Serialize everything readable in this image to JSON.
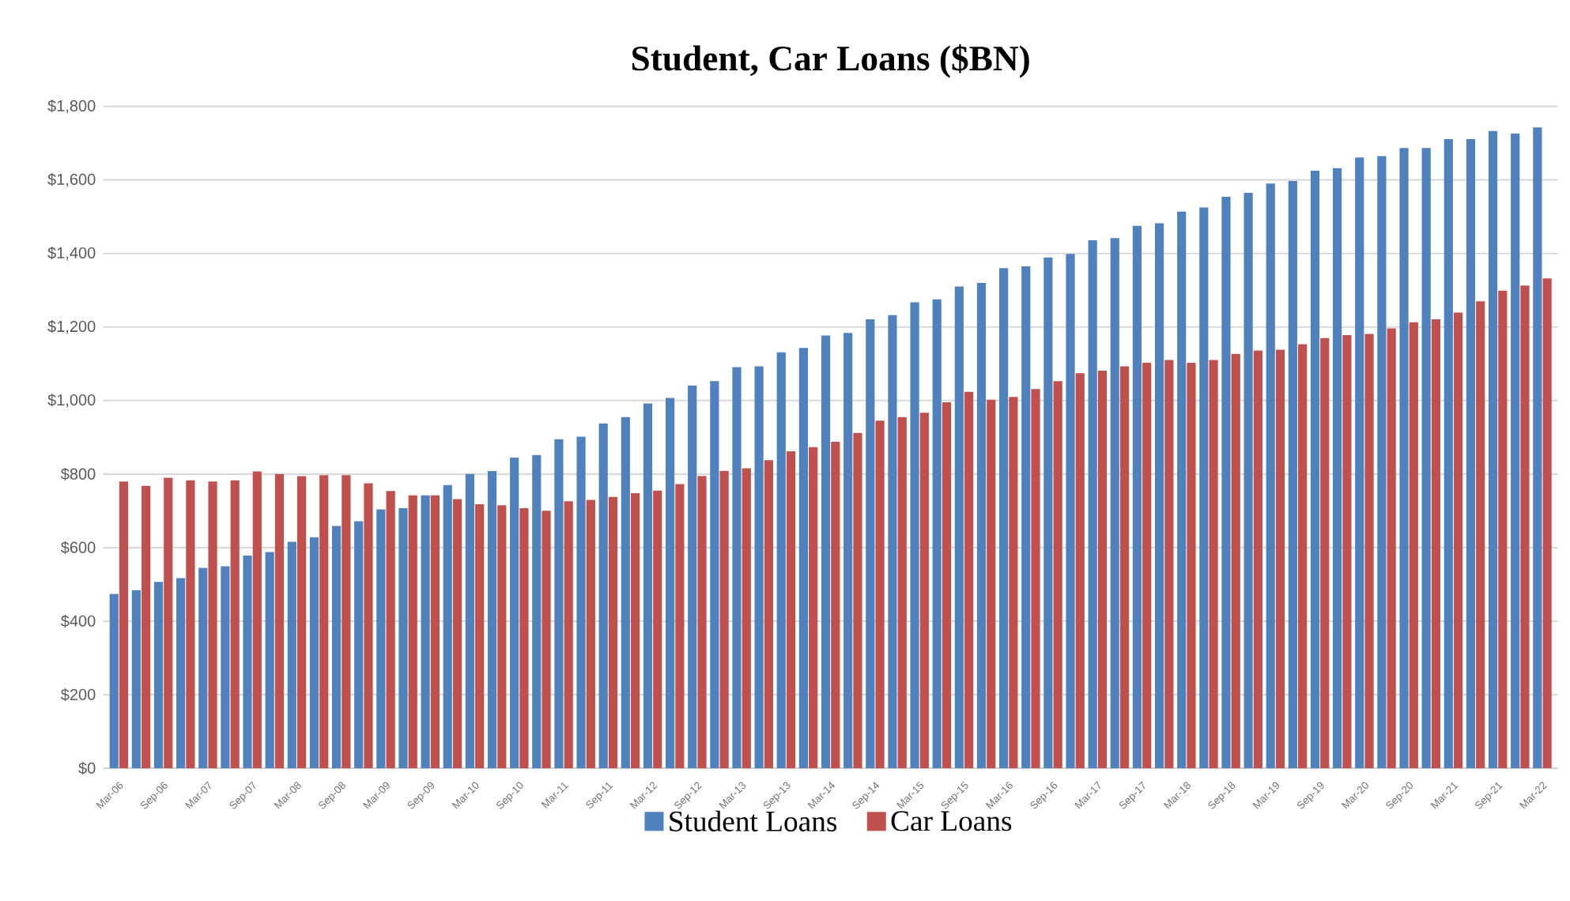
{
  "chart_data": {
    "type": "bar",
    "title": "Student, Car Loans ($BN)",
    "categories": [
      "Mar-06",
      null,
      "Sep-06",
      null,
      "Mar-07",
      null,
      "Sep-07",
      null,
      "Mar-08",
      null,
      "Sep-08",
      null,
      "Mar-09",
      null,
      "Sep-09",
      null,
      "Mar-10",
      null,
      "Sep-10",
      null,
      "Mar-11",
      null,
      "Sep-11",
      null,
      "Mar-12",
      null,
      "Sep-12",
      null,
      "Mar-13",
      null,
      "Sep-13",
      null,
      "Mar-14",
      null,
      "Sep-14",
      null,
      "Mar-15",
      null,
      "Sep-15",
      null,
      "Mar-16",
      null,
      "Sep-16",
      null,
      "Mar-17",
      null,
      "Sep-17",
      null,
      "Mar-18",
      null,
      "Sep-18",
      null,
      "Mar-19",
      null,
      "Sep-19",
      null,
      "Mar-20",
      null,
      "Sep-20",
      null,
      "Mar-21",
      null,
      "Sep-21",
      null,
      "Mar-22"
    ],
    "series": [
      {
        "name": "Student Loans",
        "color": "#4f81bd",
        "values": [
          474,
          484,
          507,
          517,
          545,
          549,
          578,
          588,
          616,
          628,
          659,
          672,
          704,
          707,
          742,
          770,
          800,
          808,
          845,
          852,
          895,
          902,
          938,
          955,
          992,
          1007,
          1041,
          1053,
          1091,
          1093,
          1131,
          1143,
          1177,
          1184,
          1221,
          1232,
          1267,
          1275,
          1310,
          1320,
          1360,
          1365,
          1389,
          1399,
          1436,
          1442,
          1475,
          1482,
          1514,
          1525,
          1554,
          1565,
          1590,
          1597,
          1625,
          1632,
          1661,
          1665,
          1687,
          1687,
          1711,
          1711,
          1733,
          1726,
          1743
        ]
      },
      {
        "name": "Car Loans",
        "color": "#c0504d",
        "values": [
          780,
          768,
          790,
          783,
          780,
          783,
          807,
          800,
          794,
          797,
          797,
          775,
          754,
          742,
          742,
          732,
          718,
          715,
          707,
          700,
          726,
          730,
          738,
          748,
          755,
          773,
          795,
          809,
          816,
          838,
          862,
          873,
          888,
          912,
          945,
          955,
          967,
          995,
          1024,
          1002,
          1010,
          1031,
          1053,
          1074,
          1081,
          1093,
          1103,
          1110,
          1103,
          1110,
          1127,
          1136,
          1138,
          1153,
          1170,
          1178,
          1181,
          1196,
          1213,
          1221,
          1239,
          1270,
          1299,
          1313,
          1332
        ]
      }
    ],
    "ylim": [
      0,
      1800
    ],
    "yticks": [
      {
        "value": 0,
        "label": "$0"
      },
      {
        "value": 200,
        "label": "$200"
      },
      {
        "value": 400,
        "label": "$400"
      },
      {
        "value": 600,
        "label": "$600"
      },
      {
        "value": 800,
        "label": "$800"
      },
      {
        "value": 1000,
        "label": "$1,000"
      },
      {
        "value": 1200,
        "label": "$1,200"
      },
      {
        "value": 1400,
        "label": "$1,400"
      },
      {
        "value": 1600,
        "label": "$1,600"
      },
      {
        "value": 1800,
        "label": "$1,800"
      }
    ],
    "grid": "y",
    "legend": "bottom"
  }
}
